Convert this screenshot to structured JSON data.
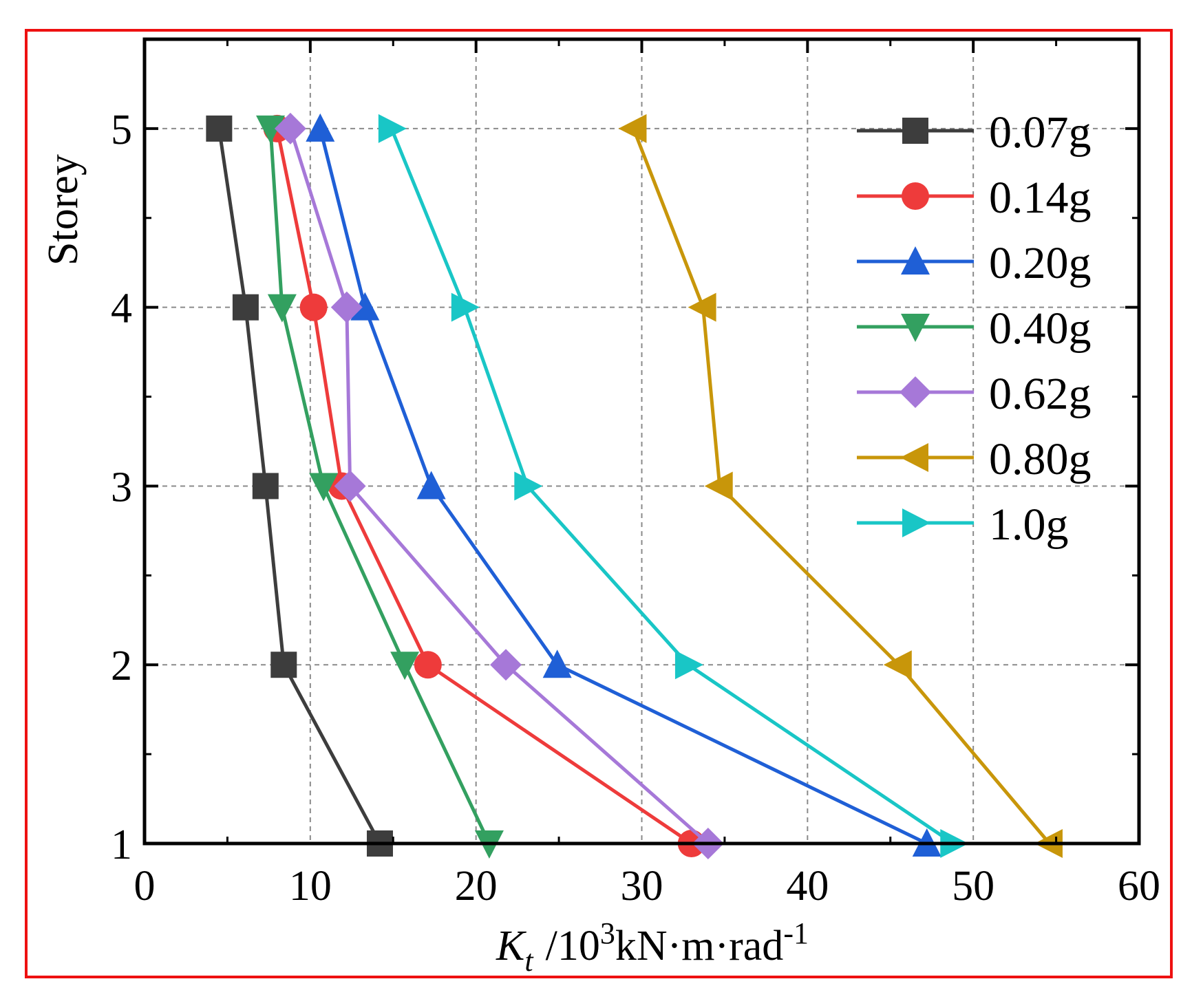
{
  "chart_data": {
    "type": "line",
    "orientation": "horizontal-x-values",
    "xlabel": {
      "main": "K",
      "sub": "t",
      "unit_prefix": "/10",
      "sup1": "3",
      "unit": "kN·m·rad",
      "sup2": "-1"
    },
    "ylabel": "Storey",
    "xlim": [
      0,
      60
    ],
    "ylim": [
      1,
      5.5
    ],
    "xticks": [
      "0",
      "10",
      "20",
      "30",
      "40",
      "50",
      "60"
    ],
    "yticks": [
      "1",
      "2",
      "3",
      "4",
      "5"
    ],
    "grid": true,
    "legend_position": "top-right",
    "storeys": [
      1,
      2,
      3,
      4,
      5
    ],
    "series": [
      {
        "name": "0.07g",
        "color": "#3d3d3d",
        "marker": "square",
        "x": [
          14.2,
          8.4,
          7.3,
          6.1,
          4.5
        ]
      },
      {
        "name": "0.14g",
        "color": "#ee3b3b",
        "marker": "circle",
        "x": [
          33.0,
          17.1,
          11.9,
          10.2,
          8.0
        ]
      },
      {
        "name": "0.20g",
        "color": "#1f5fd6",
        "marker": "triangle-up",
        "x": [
          47.2,
          24.9,
          17.3,
          13.3,
          10.6
        ]
      },
      {
        "name": "0.40g",
        "color": "#33a060",
        "marker": "triangle-down",
        "x": [
          20.8,
          15.7,
          10.8,
          8.3,
          7.6
        ]
      },
      {
        "name": "0.62g",
        "color": "#a678d8",
        "marker": "diamond",
        "x": [
          34.0,
          21.8,
          12.4,
          12.2,
          8.8
        ]
      },
      {
        "name": "0.80g",
        "color": "#c8960a",
        "marker": "triangle-left",
        "x": [
          54.6,
          45.5,
          34.7,
          33.7,
          29.5
        ]
      },
      {
        "name": "1.0g",
        "color": "#19c6c6",
        "marker": "triangle-right",
        "x": [
          48.8,
          32.8,
          23.1,
          19.3,
          14.9
        ]
      }
    ]
  }
}
